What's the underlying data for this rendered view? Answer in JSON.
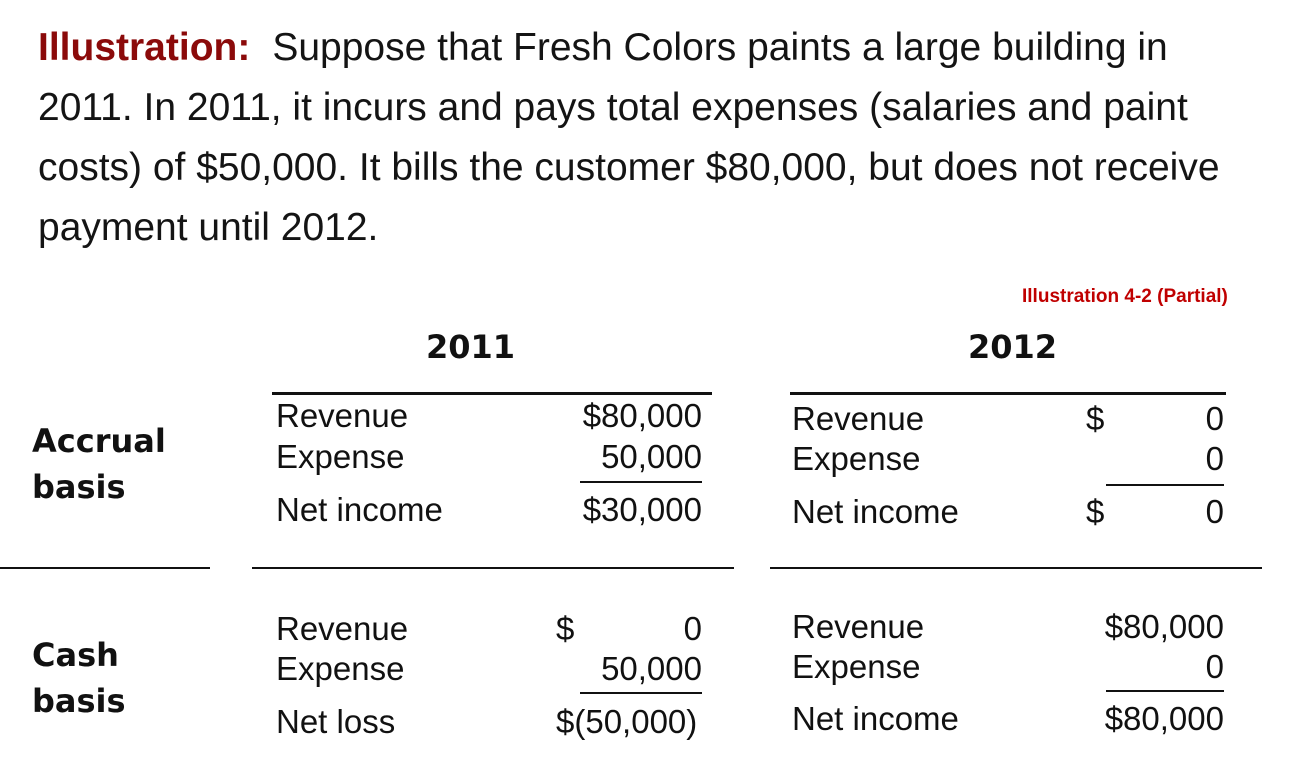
{
  "intro": {
    "lead": "Illustration:",
    "body": "Suppose that Fresh Colors paints a large building in 2011.  In 2011, it incurs and pays total expenses (salaries and paint costs) of $50,000.  It bills the customer $80,000, but does not receive payment until 2012."
  },
  "reference": "Illustration 4-2 (Partial)",
  "years": [
    "2011",
    "2012"
  ],
  "accrual": {
    "label_line1": "Accrual",
    "label_line2": "basis",
    "y2011": {
      "rows": [
        {
          "label": "Revenue",
          "value": "$80,000"
        },
        {
          "label": "Expense",
          "value": "50,000"
        },
        {
          "label": "Net income",
          "value": "$30,000"
        }
      ]
    },
    "y2012": {
      "rows": [
        {
          "label": "Revenue",
          "sign": "$",
          "value": "0"
        },
        {
          "label": "Expense",
          "sign": "",
          "value": "0"
        },
        {
          "label": "Net income",
          "sign": "$",
          "value": "0"
        }
      ]
    }
  },
  "cash": {
    "label_line1": "Cash",
    "label_line2": "basis",
    "y2011": {
      "rows": [
        {
          "label": "Revenue",
          "sign": "$",
          "value": "0"
        },
        {
          "label": "Expense",
          "sign": "",
          "value": "50,000"
        },
        {
          "label": "Net loss",
          "sign": "",
          "value": "$(50,000)"
        }
      ]
    },
    "y2012": {
      "rows": [
        {
          "label": "Revenue",
          "value": "$80,000"
        },
        {
          "label": "Expense",
          "value": "0"
        },
        {
          "label": "Net income",
          "value": "$80,000"
        }
      ]
    }
  }
}
